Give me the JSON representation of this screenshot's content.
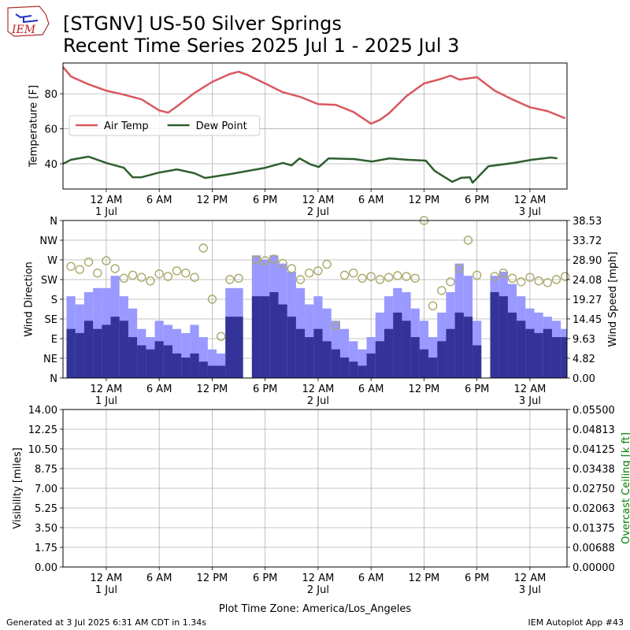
{
  "logo": "IEM",
  "footer_left": "Generated at 3 Jul 2025 6:31 AM CDT in 1.34s",
  "footer_right": "IEM Autoplot App #43",
  "chart_data": [
    {
      "type": "line",
      "title": "[STGNV] US-50 Silver Springs",
      "subtitle": "Recent Time Series 2025 Jul 1 - 2025 Jul 3",
      "ylabel": "Temperature [F]",
      "xlim": [
        -4.9,
        52.2
      ],
      "xticks": [
        {
          "value": 0,
          "label": "12 AM\n1 Jul"
        },
        {
          "value": 6,
          "label": "6 AM"
        },
        {
          "value": 12,
          "label": "12 PM"
        },
        {
          "value": 18,
          "label": "6 PM"
        },
        {
          "value": 24,
          "label": "12 AM\n2 Jul"
        },
        {
          "value": 30,
          "label": "6 AM"
        },
        {
          "value": 36,
          "label": "12 PM"
        },
        {
          "value": 42,
          "label": "6 PM"
        },
        {
          "value": 48,
          "label": "12 AM\n3 Jul"
        }
      ],
      "ylim": [
        25.6,
        97.6
      ],
      "yticks": [
        40,
        60,
        80
      ],
      "grid": true,
      "legend": "center left",
      "series": [
        {
          "name": "Air Temp",
          "color": "#d9585f",
          "x": [
            -4.9,
            -4,
            -2,
            0,
            2,
            4,
            6,
            7,
            8,
            10,
            12,
            14,
            15,
            16,
            18,
            20,
            22,
            24,
            26,
            28,
            30,
            31,
            32,
            34,
            36,
            38,
            39,
            40,
            42,
            44,
            46,
            48,
            50,
            52
          ],
          "values": [
            95.3,
            89.9,
            85.4,
            81.8,
            79.5,
            76.8,
            70.5,
            69.2,
            72.8,
            80.5,
            86.8,
            91.3,
            92.6,
            90.8,
            85.9,
            80.9,
            78.2,
            74.1,
            73.7,
            69.6,
            62.9,
            65.1,
            68.7,
            78.6,
            85.9,
            88.6,
            90.4,
            88.1,
            89.5,
            81.8,
            76.8,
            72.3,
            70.1,
            66
          ]
        },
        {
          "name": "Dew Point",
          "color": "#2f5f2f",
          "x": [
            -4.9,
            -4,
            -2,
            0,
            2,
            3,
            4,
            6,
            8,
            10,
            11.2,
            14,
            18,
            20,
            21,
            21.9,
            23.2,
            24.1,
            25.2,
            28.1,
            30.1,
            32.1,
            34.1,
            36.2,
            37.2,
            39.2,
            40.2,
            41.2,
            41.5,
            43.3,
            46.2,
            48.2,
            50.4,
            51.1
          ],
          "values": [
            40,
            42.3,
            44.1,
            40.5,
            37.7,
            32.3,
            32.3,
            35,
            36.8,
            34.6,
            31.9,
            34.1,
            37.7,
            40.5,
            39.1,
            43.1,
            39.5,
            38.2,
            43.1,
            42.7,
            41.3,
            43.1,
            42.3,
            41.8,
            36,
            29.7,
            32,
            32.3,
            29.2,
            38.6,
            40.5,
            42.3,
            43.6,
            43.1
          ]
        }
      ]
    },
    {
      "type": "bar",
      "ylabel": "Wind Direction",
      "y2label": "Wind Speed [mph]",
      "xlim": [
        -4.9,
        52.2
      ],
      "xticks": [
        {
          "value": 0,
          "label": "12 AM\n1 Jul"
        },
        {
          "value": 6,
          "label": "6 AM"
        },
        {
          "value": 12,
          "label": "12 PM"
        },
        {
          "value": 18,
          "label": "6 PM"
        },
        {
          "value": 24,
          "label": "12 AM\n2 Jul"
        },
        {
          "value": 30,
          "label": "6 AM"
        },
        {
          "value": 36,
          "label": "12 PM"
        },
        {
          "value": 42,
          "label": "6 PM"
        },
        {
          "value": 48,
          "label": "12 AM\n3 Jul"
        }
      ],
      "ylim": [
        0,
        360
      ],
      "yticks": [
        {
          "value": 0,
          "label": "N"
        },
        {
          "value": 45,
          "label": "NE"
        },
        {
          "value": 90,
          "label": "E"
        },
        {
          "value": 135,
          "label": "SE"
        },
        {
          "value": 180,
          "label": "S"
        },
        {
          "value": 225,
          "label": "SW"
        },
        {
          "value": 270,
          "label": "W"
        },
        {
          "value": 315,
          "label": "NW"
        },
        {
          "value": 360,
          "label": "N"
        }
      ],
      "y2lim": [
        0,
        38.53
      ],
      "y2ticks": [
        {
          "value": 0,
          "label": "0.00"
        },
        4.82,
        9.63,
        14.45,
        19.27,
        24.08,
        {
          "value": 28.9,
          "label": "28.90"
        },
        33.72,
        38.53
      ],
      "grid": true,
      "x": [
        -4,
        -3,
        -2,
        -1,
        0,
        1,
        2,
        3,
        4,
        5,
        6,
        7,
        8,
        9,
        10,
        11,
        12,
        13,
        14,
        15,
        16,
        17,
        18,
        19,
        20,
        21,
        22,
        23,
        24,
        25,
        26,
        27,
        28,
        29,
        30,
        31,
        32,
        33,
        34,
        35,
        36,
        37,
        38,
        39,
        40,
        41,
        42,
        43,
        44,
        45,
        46,
        47,
        48,
        49,
        50,
        51,
        52
      ],
      "series": [
        {
          "type": "bar",
          "axis": "y2",
          "color": "#9999ff",
          "values": [
            20,
            18,
            21,
            22,
            22,
            25,
            20,
            17,
            12,
            10,
            14,
            13,
            12,
            11,
            13,
            10,
            7,
            6,
            22,
            22,
            null,
            30,
            29,
            30,
            28,
            26,
            22,
            18,
            20,
            17,
            14,
            12,
            9,
            7,
            10,
            16,
            20,
            22,
            21,
            17,
            14,
            10,
            16,
            21,
            28,
            25,
            14,
            null,
            25,
            26,
            23,
            20,
            17,
            16,
            15,
            14,
            12
          ]
        },
        {
          "type": "bar",
          "axis": "y2",
          "color": "#333399",
          "values": [
            12,
            11,
            14,
            12,
            13,
            15,
            14,
            10,
            8,
            7,
            9,
            8,
            6,
            5,
            6,
            4,
            3,
            3,
            15,
            15,
            null,
            20,
            20,
            21,
            18,
            15,
            12,
            10,
            12,
            9,
            7,
            5,
            4,
            3,
            6,
            9,
            12,
            16,
            14,
            10,
            7,
            5,
            9,
            12,
            16,
            15,
            8,
            null,
            21,
            20,
            16,
            14,
            12,
            11,
            12,
            10,
            10
          ]
        },
        {
          "type": "scatter",
          "color": "#a9a96b",
          "values": [
            255,
            248,
            265,
            240,
            268,
            250,
            228,
            235,
            230,
            222,
            238,
            232,
            245,
            240,
            230,
            297,
            180,
            95,
            225,
            228,
            null,
            270,
            268,
            272,
            262,
            250,
            225,
            240,
            245,
            260,
            120,
            235,
            240,
            228,
            232,
            225,
            230,
            234,
            232,
            228,
            360,
            165,
            200,
            220,
            250,
            315,
            235,
            null,
            232,
            240,
            228,
            220,
            230,
            222,
            218,
            225,
            232
          ]
        }
      ]
    },
    {
      "type": "line",
      "ylabel": "Visibility [miles]",
      "y2label": "Overcast Ceiling [k ft]",
      "y2label_color": "#008000",
      "xlabel": "Plot Time Zone: America/Los_Angeles",
      "xlim": [
        -4.9,
        52.2
      ],
      "xticks": [
        {
          "value": 0,
          "label": "12 AM\n1 Jul"
        },
        {
          "value": 6,
          "label": "6 AM"
        },
        {
          "value": 12,
          "label": "12 PM"
        },
        {
          "value": 18,
          "label": "6 PM"
        },
        {
          "value": 24,
          "label": "12 AM\n2 Jul"
        },
        {
          "value": 30,
          "label": "6 AM"
        },
        {
          "value": 36,
          "label": "12 PM"
        },
        {
          "value": 42,
          "label": "6 PM"
        },
        {
          "value": 48,
          "label": "12 AM\n3 Jul"
        }
      ],
      "ylim": [
        0,
        14
      ],
      "yticks": [
        {
          "value": 0,
          "label": "0.00"
        },
        1.75,
        {
          "value": 3.5,
          "label": "3.50"
        },
        5.25,
        {
          "value": 7,
          "label": "7.00"
        },
        8.75,
        {
          "value": 10.5,
          "label": "10.50"
        },
        12.25,
        {
          "value": 14,
          "label": "14.00"
        }
      ],
      "y2lim": [
        0,
        0.055
      ],
      "y2ticks": [
        {
          "value": 0,
          "label": "0.00000"
        },
        {
          "value": 0.006875,
          "label": "0.00688"
        },
        0.01375,
        {
          "value": 0.020625,
          "label": "0.02063"
        },
        {
          "value": 0.0275,
          "label": "0.02750"
        },
        {
          "value": 0.034375,
          "label": "0.03438"
        },
        0.04125,
        {
          "value": 0.048125,
          "label": "0.04813"
        },
        {
          "value": 0.055,
          "label": "0.05500"
        }
      ],
      "grid": true
    }
  ]
}
